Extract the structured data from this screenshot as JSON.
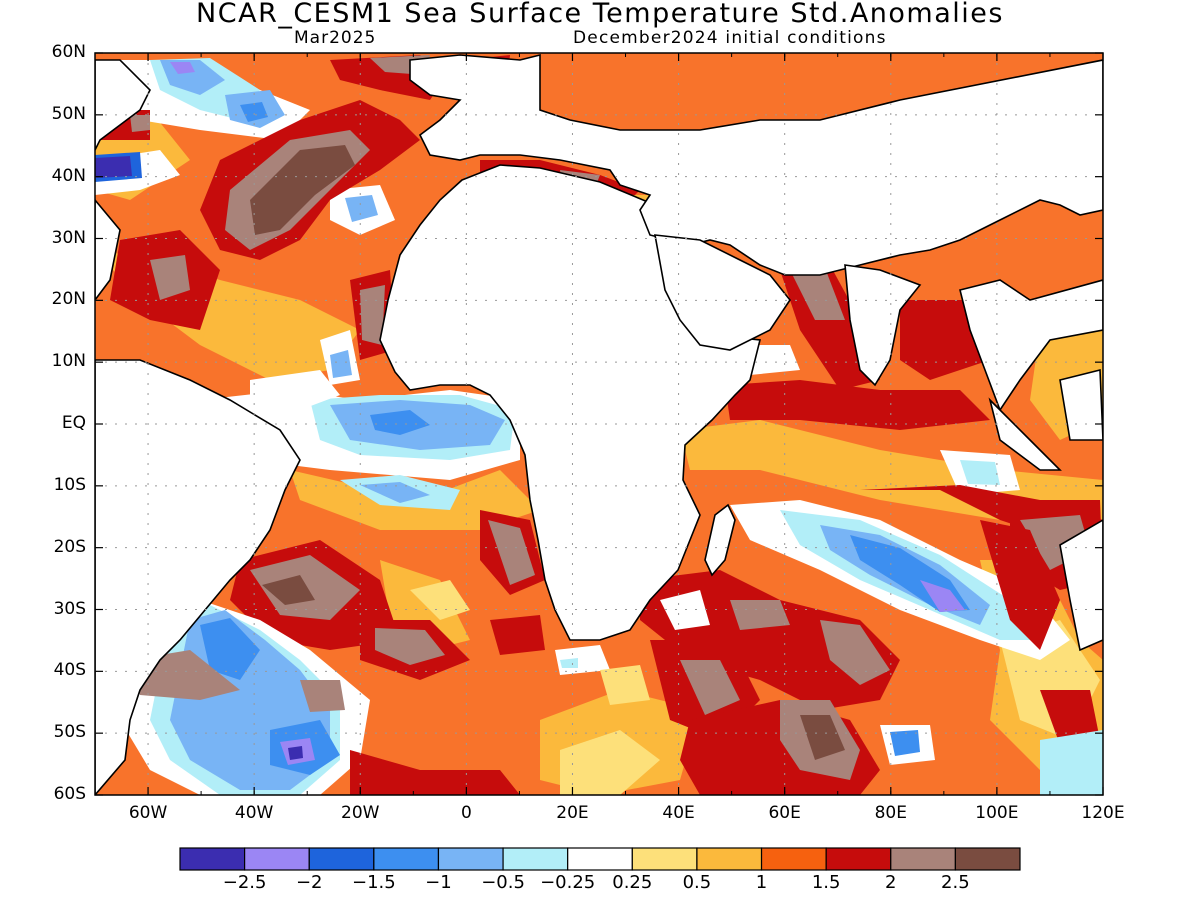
{
  "header": {
    "title": "NCAR_CESM1 Sea Surface Temperature Std.Anomalies",
    "valid_month": "Mar2025",
    "init": "December2024 initial conditions"
  },
  "axes": {
    "lat_labels": [
      "60N",
      "50N",
      "40N",
      "30N",
      "20N",
      "10N",
      "EQ",
      "10S",
      "20S",
      "30S",
      "40S",
      "50S",
      "60S"
    ],
    "lon_labels": [
      "60W",
      "40W",
      "20W",
      "0",
      "20E",
      "40E",
      "60E",
      "80E",
      "100E",
      "120E"
    ],
    "lon_range": [
      -70,
      120
    ],
    "lat_range": [
      -60,
      60
    ],
    "gridlines": "dotted"
  },
  "colorbar": {
    "tick_labels": [
      "-2.5",
      "-2",
      "-1.5",
      "-1",
      "-0.5",
      "-0.25",
      "0.25",
      "0.5",
      "1",
      "1.5",
      "2",
      "2.5"
    ],
    "colors": [
      "#3b2db0",
      "#9b86f4",
      "#1e64dc",
      "#3d8ff0",
      "#78b4f5",
      "#b2eef8",
      "#ffffff",
      "#fde07a",
      "#fbb93c",
      "#f6610f",
      "#c60c0c",
      "#a9837a",
      "#7a4c40"
    ]
  }
}
